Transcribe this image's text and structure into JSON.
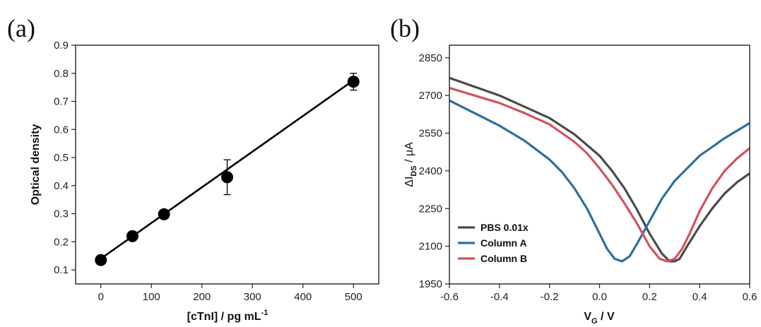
{
  "chart_data": [
    {
      "panel_label": "(a)",
      "type": "scatter",
      "xlabel_main": "[cTnI] / pg mL",
      "xlabel_sup": "-1",
      "ylabel": "Optical density",
      "xlim": [
        -50,
        550
      ],
      "ylim": [
        0.05,
        0.9
      ],
      "xticks": [
        0,
        100,
        200,
        300,
        400,
        500
      ],
      "yticks": [
        0.1,
        0.2,
        0.3,
        0.4,
        0.5,
        0.6,
        0.7,
        0.8,
        0.9
      ],
      "points": [
        {
          "x": 0,
          "y": 0.135,
          "err": 0
        },
        {
          "x": 62.5,
          "y": 0.22,
          "err": 0
        },
        {
          "x": 125,
          "y": 0.298,
          "err": 0
        },
        {
          "x": 250,
          "y": 0.43,
          "err": 0.062
        },
        {
          "x": 500,
          "y": 0.77,
          "err": 0.03
        }
      ],
      "fit_line": {
        "x": [
          0,
          500
        ],
        "y": [
          0.14,
          0.775
        ]
      },
      "color": "#000000"
    },
    {
      "panel_label": "(b)",
      "type": "line",
      "xlabel_main": "V",
      "xlabel_sub": "G",
      "xlabel_rest": " / V",
      "ylabel_prefix": "ΔI",
      "ylabel_sub": "DS",
      "ylabel_rest": " / μA",
      "xlim": [
        -0.6,
        0.6
      ],
      "ylim": [
        1950,
        2900
      ],
      "xticks": [
        -0.6,
        -0.4,
        -0.2,
        0.0,
        0.2,
        0.4,
        0.6
      ],
      "xtick_labels": [
        "-0.6",
        "-0.4",
        "-0.2",
        "0.0",
        "0.2",
        "0.4",
        "0.6"
      ],
      "yticks": [
        1950,
        2100,
        2250,
        2400,
        2550,
        2700,
        2850
      ],
      "legend_position": "bottom-left",
      "series": [
        {
          "name": "PBS 0.01x",
          "color": "#4a4a4a",
          "x": [
            -0.6,
            -0.5,
            -0.4,
            -0.3,
            -0.2,
            -0.1,
            0.0,
            0.05,
            0.1,
            0.15,
            0.2,
            0.25,
            0.28,
            0.3,
            0.32,
            0.35,
            0.4,
            0.45,
            0.5,
            0.55,
            0.6
          ],
          "y": [
            2770,
            2735,
            2700,
            2655,
            2610,
            2545,
            2460,
            2400,
            2330,
            2245,
            2150,
            2070,
            2040,
            2040,
            2050,
            2100,
            2180,
            2250,
            2310,
            2355,
            2390
          ]
        },
        {
          "name": "Column A",
          "color": "#2c6fa0",
          "x": [
            -0.6,
            -0.5,
            -0.4,
            -0.3,
            -0.2,
            -0.15,
            -0.1,
            -0.05,
            0.0,
            0.03,
            0.06,
            0.09,
            0.12,
            0.15,
            0.2,
            0.25,
            0.3,
            0.4,
            0.5,
            0.6
          ],
          "y": [
            2680,
            2630,
            2580,
            2520,
            2445,
            2395,
            2330,
            2250,
            2150,
            2090,
            2050,
            2040,
            2060,
            2110,
            2200,
            2290,
            2360,
            2460,
            2530,
            2590
          ]
        },
        {
          "name": "Column B",
          "color": "#d0545f",
          "x": [
            -0.6,
            -0.5,
            -0.4,
            -0.3,
            -0.2,
            -0.1,
            -0.05,
            0.0,
            0.05,
            0.1,
            0.15,
            0.2,
            0.24,
            0.27,
            0.3,
            0.33,
            0.36,
            0.4,
            0.45,
            0.5,
            0.55,
            0.6
          ],
          "y": [
            2730,
            2700,
            2670,
            2630,
            2585,
            2515,
            2470,
            2410,
            2345,
            2270,
            2190,
            2100,
            2050,
            2040,
            2050,
            2090,
            2150,
            2240,
            2330,
            2400,
            2450,
            2490
          ]
        }
      ]
    }
  ]
}
